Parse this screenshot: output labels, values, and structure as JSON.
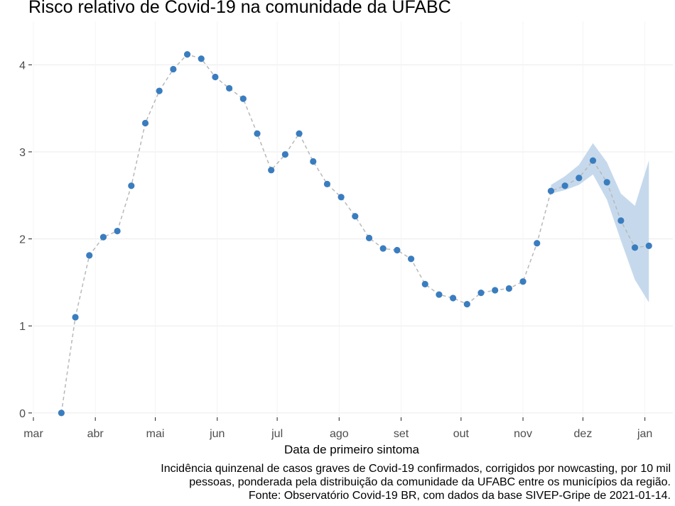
{
  "chart_data": {
    "type": "line",
    "title": "Risco relativo de Covid-19 na comunidade da UFABC",
    "xlabel": "Data de primeiro sintoma",
    "ylabel": "",
    "x_ticks": [
      "mar",
      "abr",
      "mai",
      "jun",
      "jul",
      "ago",
      "set",
      "out",
      "nov",
      "dez",
      "jan"
    ],
    "x_tick_dates": [
      "2020-03-01",
      "2020-04-01",
      "2020-05-01",
      "2020-06-01",
      "2020-07-01",
      "2020-08-01",
      "2020-09-01",
      "2020-10-01",
      "2020-11-01",
      "2020-12-01",
      "2021-01-01"
    ],
    "y_ticks": [
      0,
      1,
      2,
      3,
      4
    ],
    "xlim": [
      "2020-03-01",
      "2021-01-15"
    ],
    "ylim": [
      -0.05,
      4.5
    ],
    "grid": true,
    "point_color": "#3a7dbf",
    "line_color": "#b8b8b8",
    "band_color": "#c6d9ec",
    "series": [
      {
        "points": [
          {
            "x": "2020-03-15",
            "y": 0.0
          },
          {
            "x": "2020-03-22",
            "y": 1.1
          },
          {
            "x": "2020-03-29",
            "y": 1.81
          },
          {
            "x": "2020-04-05",
            "y": 2.02
          },
          {
            "x": "2020-04-12",
            "y": 2.09
          },
          {
            "x": "2020-04-19",
            "y": 2.61
          },
          {
            "x": "2020-04-26",
            "y": 3.33
          },
          {
            "x": "2020-05-03",
            "y": 3.7
          },
          {
            "x": "2020-05-10",
            "y": 3.95
          },
          {
            "x": "2020-05-17",
            "y": 4.12
          },
          {
            "x": "2020-05-24",
            "y": 4.07
          },
          {
            "x": "2020-05-31",
            "y": 3.86
          },
          {
            "x": "2020-06-07",
            "y": 3.73
          },
          {
            "x": "2020-06-14",
            "y": 3.61
          },
          {
            "x": "2020-06-21",
            "y": 3.21
          },
          {
            "x": "2020-06-28",
            "y": 2.79
          },
          {
            "x": "2020-07-05",
            "y": 2.97
          },
          {
            "x": "2020-07-12",
            "y": 3.21
          },
          {
            "x": "2020-07-19",
            "y": 2.89
          },
          {
            "x": "2020-07-26",
            "y": 2.63
          },
          {
            "x": "2020-08-02",
            "y": 2.48
          },
          {
            "x": "2020-08-09",
            "y": 2.26
          },
          {
            "x": "2020-08-16",
            "y": 2.01
          },
          {
            "x": "2020-08-23",
            "y": 1.89
          },
          {
            "x": "2020-08-30",
            "y": 1.87
          },
          {
            "x": "2020-09-06",
            "y": 1.77
          },
          {
            "x": "2020-09-13",
            "y": 1.48
          },
          {
            "x": "2020-09-20",
            "y": 1.36
          },
          {
            "x": "2020-09-27",
            "y": 1.32
          },
          {
            "x": "2020-10-04",
            "y": 1.25
          },
          {
            "x": "2020-10-11",
            "y": 1.38
          },
          {
            "x": "2020-10-18",
            "y": 1.41
          },
          {
            "x": "2020-10-25",
            "y": 1.43
          },
          {
            "x": "2020-11-01",
            "y": 1.51
          },
          {
            "x": "2020-11-08",
            "y": 1.95
          },
          {
            "x": "2020-11-15",
            "y": 2.55
          },
          {
            "x": "2020-11-22",
            "y": 2.61
          },
          {
            "x": "2020-11-29",
            "y": 2.7
          },
          {
            "x": "2020-12-06",
            "y": 2.9
          },
          {
            "x": "2020-12-13",
            "y": 2.65
          },
          {
            "x": "2020-12-20",
            "y": 2.21
          },
          {
            "x": "2020-12-27",
            "y": 1.9
          },
          {
            "x": "2021-01-03",
            "y": 1.92
          }
        ],
        "band": [
          {
            "x": "2020-11-15",
            "lo": 2.52,
            "hi": 2.62
          },
          {
            "x": "2020-11-22",
            "lo": 2.56,
            "hi": 2.72
          },
          {
            "x": "2020-11-29",
            "lo": 2.62,
            "hi": 2.85
          },
          {
            "x": "2020-12-06",
            "lo": 2.74,
            "hi": 3.1
          },
          {
            "x": "2020-12-13",
            "lo": 2.45,
            "hi": 2.88
          },
          {
            "x": "2020-12-20",
            "lo": 1.98,
            "hi": 2.52
          },
          {
            "x": "2020-12-27",
            "lo": 1.53,
            "hi": 2.38
          },
          {
            "x": "2021-01-03",
            "lo": 1.27,
            "hi": 2.9
          }
        ]
      }
    ]
  },
  "caption": {
    "line1": "Incidência quinzenal de casos graves de Covid-19 confirmados, corrigidos por nowcasting, por 10 mil",
    "line2": "pessoas, ponderada pela distribuição da comunidade da UFABC entre os municípios da região.",
    "line3": "Fonte: Observatório Covid-19 BR, com dados da base SIVEP-Gripe de 2021-01-14."
  }
}
